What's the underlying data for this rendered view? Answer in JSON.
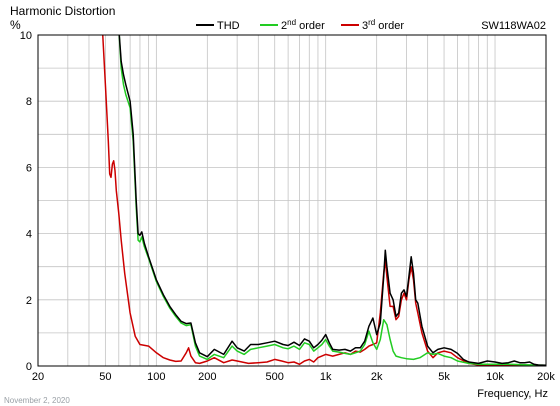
{
  "chart_data": {
    "type": "line",
    "title": "Harmonic Distortion",
    "model": "SW118WA02",
    "ylabel": "%",
    "xlabel": "Frequency, Hz",
    "date": "November 2, 2020",
    "x_scale": "log",
    "xlim": [
      20,
      20000
    ],
    "ylim": [
      0,
      10
    ],
    "grid": true,
    "legend_position": "top-center",
    "x_tick_labels": [
      "20",
      "50",
      "100",
      "200",
      "500",
      "1k",
      "2k",
      "5k",
      "10k",
      "20k"
    ],
    "y_tick_labels": [
      "0",
      "2",
      "4",
      "6",
      "8",
      "10"
    ],
    "legend": {
      "thd": "THD",
      "second": {
        "base": "2",
        "sup": "nd",
        "suffix": " order"
      },
      "third": {
        "base": "3",
        "sup": "rd",
        "suffix": " order"
      }
    },
    "series": [
      {
        "name": "THD",
        "color": "#000000",
        "points": [
          [
            60,
            10.2
          ],
          [
            62,
            9.2
          ],
          [
            64,
            8.8
          ],
          [
            66,
            8.5
          ],
          [
            70,
            8.0
          ],
          [
            73,
            7.0
          ],
          [
            76,
            5.0
          ],
          [
            78,
            4.0
          ],
          [
            80,
            3.95
          ],
          [
            82,
            4.05
          ],
          [
            85,
            3.7
          ],
          [
            90,
            3.3
          ],
          [
            100,
            2.6
          ],
          [
            110,
            2.15
          ],
          [
            120,
            1.8
          ],
          [
            130,
            1.55
          ],
          [
            140,
            1.35
          ],
          [
            150,
            1.28
          ],
          [
            160,
            1.3
          ],
          [
            170,
            0.7
          ],
          [
            180,
            0.4
          ],
          [
            200,
            0.28
          ],
          [
            220,
            0.5
          ],
          [
            250,
            0.35
          ],
          [
            280,
            0.75
          ],
          [
            300,
            0.55
          ],
          [
            330,
            0.45
          ],
          [
            360,
            0.65
          ],
          [
            400,
            0.65
          ],
          [
            450,
            0.7
          ],
          [
            500,
            0.75
          ],
          [
            560,
            0.65
          ],
          [
            600,
            0.62
          ],
          [
            650,
            0.72
          ],
          [
            700,
            0.62
          ],
          [
            750,
            0.82
          ],
          [
            800,
            0.75
          ],
          [
            850,
            0.55
          ],
          [
            900,
            0.65
          ],
          [
            950,
            0.78
          ],
          [
            1000,
            0.95
          ],
          [
            1050,
            0.7
          ],
          [
            1100,
            0.5
          ],
          [
            1200,
            0.48
          ],
          [
            1300,
            0.5
          ],
          [
            1400,
            0.45
          ],
          [
            1500,
            0.55
          ],
          [
            1600,
            0.55
          ],
          [
            1700,
            0.75
          ],
          [
            1800,
            1.2
          ],
          [
            1900,
            1.45
          ],
          [
            2000,
            0.95
          ],
          [
            2100,
            1.3
          ],
          [
            2200,
            2.7
          ],
          [
            2250,
            3.5
          ],
          [
            2300,
            3.0
          ],
          [
            2400,
            2.2
          ],
          [
            2500,
            2.0
          ],
          [
            2600,
            1.5
          ],
          [
            2700,
            1.6
          ],
          [
            2800,
            2.2
          ],
          [
            2900,
            2.3
          ],
          [
            3000,
            2.1
          ],
          [
            3100,
            2.7
          ],
          [
            3200,
            3.3
          ],
          [
            3300,
            2.8
          ],
          [
            3400,
            2.0
          ],
          [
            3500,
            1.9
          ],
          [
            3700,
            1.2
          ],
          [
            4000,
            0.6
          ],
          [
            4300,
            0.4
          ],
          [
            4600,
            0.5
          ],
          [
            5000,
            0.55
          ],
          [
            5500,
            0.5
          ],
          [
            6000,
            0.38
          ],
          [
            6500,
            0.2
          ],
          [
            7000,
            0.12
          ],
          [
            8000,
            0.08
          ],
          [
            9000,
            0.15
          ],
          [
            10000,
            0.12
          ],
          [
            11000,
            0.08
          ],
          [
            12000,
            0.1
          ],
          [
            13000,
            0.15
          ],
          [
            14000,
            0.1
          ],
          [
            15000,
            0.1
          ],
          [
            16000,
            0.12
          ],
          [
            17000,
            0.05
          ],
          [
            18000,
            0.03
          ],
          [
            20000,
            0.02
          ]
        ]
      },
      {
        "name": "2nd order",
        "color": "#22cc22",
        "points": [
          [
            60,
            10.2
          ],
          [
            62,
            9.0
          ],
          [
            64,
            8.5
          ],
          [
            66,
            8.2
          ],
          [
            70,
            7.8
          ],
          [
            73,
            6.8
          ],
          [
            76,
            4.8
          ],
          [
            78,
            3.8
          ],
          [
            80,
            3.75
          ],
          [
            82,
            3.9
          ],
          [
            85,
            3.6
          ],
          [
            90,
            3.25
          ],
          [
            100,
            2.55
          ],
          [
            110,
            2.1
          ],
          [
            120,
            1.75
          ],
          [
            130,
            1.5
          ],
          [
            140,
            1.3
          ],
          [
            150,
            1.22
          ],
          [
            160,
            1.25
          ],
          [
            170,
            0.6
          ],
          [
            180,
            0.3
          ],
          [
            200,
            0.2
          ],
          [
            220,
            0.35
          ],
          [
            250,
            0.25
          ],
          [
            280,
            0.6
          ],
          [
            300,
            0.45
          ],
          [
            330,
            0.35
          ],
          [
            360,
            0.5
          ],
          [
            400,
            0.55
          ],
          [
            450,
            0.6
          ],
          [
            500,
            0.65
          ],
          [
            560,
            0.55
          ],
          [
            600,
            0.52
          ],
          [
            650,
            0.6
          ],
          [
            700,
            0.5
          ],
          [
            750,
            0.7
          ],
          [
            800,
            0.65
          ],
          [
            850,
            0.45
          ],
          [
            900,
            0.55
          ],
          [
            950,
            0.65
          ],
          [
            1000,
            0.8
          ],
          [
            1050,
            0.6
          ],
          [
            1100,
            0.45
          ],
          [
            1200,
            0.42
          ],
          [
            1300,
            0.38
          ],
          [
            1400,
            0.35
          ],
          [
            1500,
            0.4
          ],
          [
            1600,
            0.45
          ],
          [
            1700,
            0.65
          ],
          [
            1800,
            1.05
          ],
          [
            1900,
            0.7
          ],
          [
            2000,
            0.5
          ],
          [
            2100,
            0.8
          ],
          [
            2200,
            1.4
          ],
          [
            2300,
            1.25
          ],
          [
            2400,
            0.8
          ],
          [
            2500,
            0.45
          ],
          [
            2600,
            0.3
          ],
          [
            2800,
            0.25
          ],
          [
            3000,
            0.22
          ],
          [
            3300,
            0.2
          ],
          [
            3600,
            0.25
          ],
          [
            4000,
            0.4
          ],
          [
            4300,
            0.35
          ],
          [
            4600,
            0.38
          ],
          [
            5000,
            0.3
          ],
          [
            5500,
            0.25
          ],
          [
            6000,
            0.15
          ],
          [
            7000,
            0.08
          ],
          [
            8000,
            0.05
          ],
          [
            10000,
            0.05
          ],
          [
            12000,
            0.05
          ],
          [
            15000,
            0.04
          ],
          [
            20000,
            0.02
          ]
        ]
      },
      {
        "name": "3rd order",
        "color": "#cc0000",
        "points": [
          [
            48,
            10.2
          ],
          [
            50,
            8.5
          ],
          [
            52,
            6.8
          ],
          [
            53,
            5.8
          ],
          [
            54,
            5.7
          ],
          [
            55,
            6.1
          ],
          [
            56,
            6.2
          ],
          [
            57,
            5.9
          ],
          [
            58,
            5.3
          ],
          [
            60,
            4.6
          ],
          [
            62,
            3.8
          ],
          [
            65,
            2.8
          ],
          [
            70,
            1.6
          ],
          [
            75,
            0.9
          ],
          [
            80,
            0.65
          ],
          [
            90,
            0.6
          ],
          [
            100,
            0.4
          ],
          [
            110,
            0.25
          ],
          [
            120,
            0.18
          ],
          [
            130,
            0.14
          ],
          [
            140,
            0.15
          ],
          [
            150,
            0.4
          ],
          [
            155,
            0.55
          ],
          [
            160,
            0.3
          ],
          [
            170,
            0.1
          ],
          [
            180,
            0.08
          ],
          [
            200,
            0.15
          ],
          [
            220,
            0.25
          ],
          [
            250,
            0.1
          ],
          [
            280,
            0.18
          ],
          [
            300,
            0.15
          ],
          [
            350,
            0.08
          ],
          [
            400,
            0.1
          ],
          [
            450,
            0.12
          ],
          [
            500,
            0.2
          ],
          [
            550,
            0.15
          ],
          [
            600,
            0.1
          ],
          [
            650,
            0.12
          ],
          [
            700,
            0.05
          ],
          [
            750,
            0.15
          ],
          [
            800,
            0.2
          ],
          [
            850,
            0.12
          ],
          [
            900,
            0.25
          ],
          [
            1000,
            0.35
          ],
          [
            1100,
            0.3
          ],
          [
            1200,
            0.35
          ],
          [
            1300,
            0.4
          ],
          [
            1400,
            0.35
          ],
          [
            1500,
            0.45
          ],
          [
            1600,
            0.42
          ],
          [
            1700,
            0.5
          ],
          [
            1800,
            0.6
          ],
          [
            1900,
            0.65
          ],
          [
            2000,
            0.7
          ],
          [
            2100,
            1.6
          ],
          [
            2200,
            2.8
          ],
          [
            2250,
            3.2
          ],
          [
            2300,
            2.7
          ],
          [
            2400,
            1.8
          ],
          [
            2500,
            1.8
          ],
          [
            2600,
            1.4
          ],
          [
            2700,
            1.5
          ],
          [
            2800,
            2.0
          ],
          [
            2900,
            2.2
          ],
          [
            3000,
            2.0
          ],
          [
            3100,
            2.6
          ],
          [
            3200,
            3.0
          ],
          [
            3300,
            2.6
          ],
          [
            3400,
            1.9
          ],
          [
            3500,
            1.6
          ],
          [
            3700,
            1.0
          ],
          [
            4000,
            0.45
          ],
          [
            4300,
            0.25
          ],
          [
            4600,
            0.4
          ],
          [
            5000,
            0.45
          ],
          [
            5500,
            0.4
          ],
          [
            6000,
            0.25
          ],
          [
            7000,
            0.08
          ],
          [
            8000,
            0.03
          ],
          [
            10000,
            0.02
          ],
          [
            20000,
            0.01
          ]
        ]
      }
    ]
  }
}
